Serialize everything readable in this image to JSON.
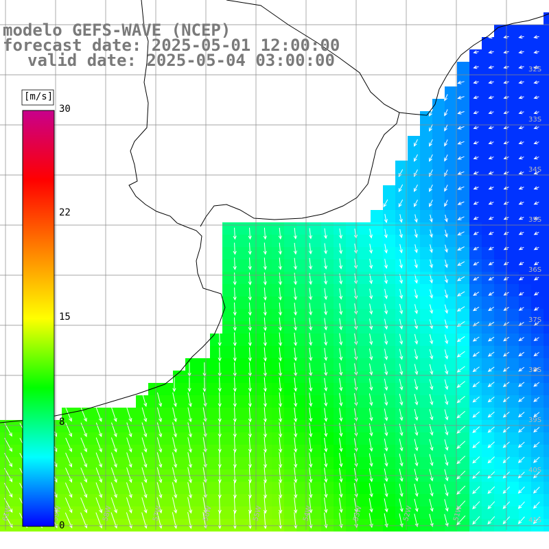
{
  "title": {
    "model": "modelo GEFS-WAVE (NCEP)",
    "forecast": "forecast date: 2025-05-01 12:00:00",
    "valid": "valid date: 2025-05-04 03:00:00"
  },
  "colorbar": {
    "unit": "[m/s]",
    "ticks": [
      "30",
      "22",
      "15",
      "8",
      "0"
    ],
    "tick_values": [
      30,
      22,
      15,
      8,
      0
    ],
    "range": [
      0,
      30
    ],
    "colors": [
      "#0000ff",
      "#00ffff",
      "#00ff00",
      "#ffff00",
      "#ff8000",
      "#ff0000",
      "#c8008c"
    ]
  },
  "map": {
    "lat_labels": [
      "32S",
      "33S",
      "34S",
      "35S",
      "36S",
      "37S",
      "38S",
      "39S",
      "40S",
      "41S"
    ],
    "lon_labels": [
      "61W",
      "59W",
      "58W",
      "57W",
      "56W",
      "55W",
      "54W",
      "53W",
      "52W",
      "51W"
    ],
    "land_color": "#ffffff",
    "coast_color": "#000000",
    "grid_color": "#888888",
    "arrow_color": "#ffffff"
  }
}
